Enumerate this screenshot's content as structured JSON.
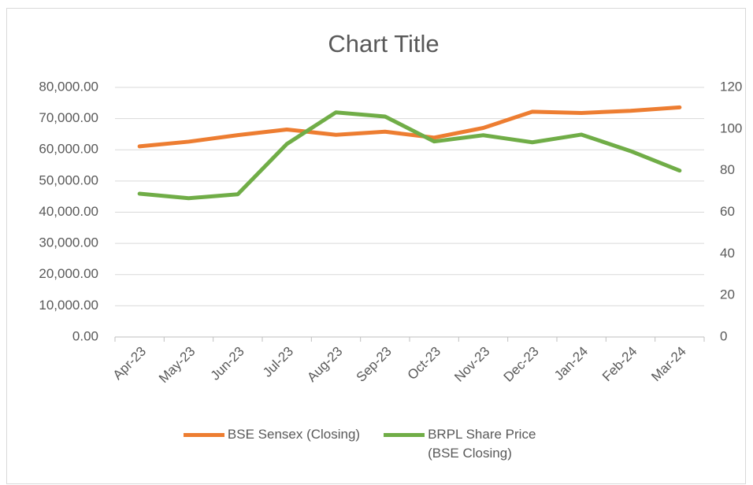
{
  "chart_data": {
    "type": "line",
    "title": "Chart Title",
    "categories": [
      "Apr-23",
      "May-23",
      "Jun-23",
      "Jul-23",
      "Aug-23",
      "Sep-23",
      "Oct-23",
      "Nov-23",
      "Dec-23",
      "Jan-24",
      "Feb-24",
      "Mar-24"
    ],
    "series": [
      {
        "name": "BSE Sensex (Closing)",
        "color": "#ed7d31",
        "values": [
          61100,
          62600,
          64700,
          66500,
          64800,
          65800,
          63900,
          67000,
          72200,
          71800,
          72500,
          73600
        ]
      },
      {
        "name": "BRPL Share Price (BSE Closing)",
        "color": "#70ad47",
        "axis": "y2",
        "values": [
          68.9,
          66.7,
          68.6,
          92.8,
          108,
          106,
          94,
          97,
          93.6,
          97.3,
          89.4,
          80
        ]
      }
    ],
    "ylim": [
      0,
      80000
    ],
    "yticks": [
      {
        "value": 0,
        "label": "0.00"
      },
      {
        "value": 10000,
        "label": "10,000.00"
      },
      {
        "value": 20000,
        "label": "20,000.00"
      },
      {
        "value": 30000,
        "label": "30,000.00"
      },
      {
        "value": 40000,
        "label": "40,000.00"
      },
      {
        "value": 50000,
        "label": "50,000.00"
      },
      {
        "value": 60000,
        "label": "60,000.00"
      },
      {
        "value": 70000,
        "label": "70,000.00"
      },
      {
        "value": 80000,
        "label": "80,000.00"
      }
    ],
    "y2lim": [
      0,
      120
    ],
    "y2ticks": [
      0,
      20,
      40,
      60,
      80,
      100,
      120
    ],
    "grid": true,
    "legend": "bottom"
  }
}
